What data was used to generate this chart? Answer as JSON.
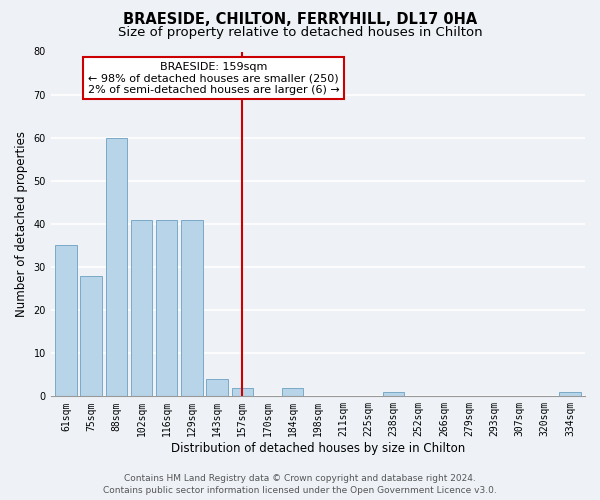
{
  "title": "BRAESIDE, CHILTON, FERRYHILL, DL17 0HA",
  "subtitle": "Size of property relative to detached houses in Chilton",
  "xlabel": "Distribution of detached houses by size in Chilton",
  "ylabel": "Number of detached properties",
  "bar_labels": [
    "61sqm",
    "75sqm",
    "88sqm",
    "102sqm",
    "116sqm",
    "129sqm",
    "143sqm",
    "157sqm",
    "170sqm",
    "184sqm",
    "198sqm",
    "211sqm",
    "225sqm",
    "238sqm",
    "252sqm",
    "266sqm",
    "279sqm",
    "293sqm",
    "307sqm",
    "320sqm",
    "334sqm"
  ],
  "bar_values": [
    35,
    28,
    60,
    41,
    41,
    41,
    4,
    2,
    0,
    2,
    0,
    0,
    0,
    1,
    0,
    0,
    0,
    0,
    0,
    0,
    1
  ],
  "bar_color": "#b8d4e8",
  "bar_edge_color": "#7aaac8",
  "vline_x": 7,
  "vline_color": "#cc0000",
  "ylim": [
    0,
    80
  ],
  "yticks": [
    0,
    10,
    20,
    30,
    40,
    50,
    60,
    70,
    80
  ],
  "annotation_title": "BRAESIDE: 159sqm",
  "annotation_line1": "← 98% of detached houses are smaller (250)",
  "annotation_line2": "2% of semi-detached houses are larger (6) →",
  "footer_line1": "Contains HM Land Registry data © Crown copyright and database right 2024.",
  "footer_line2": "Contains public sector information licensed under the Open Government Licence v3.0.",
  "background_color": "#eef2f7",
  "plot_background_color": "#eef2f7",
  "grid_color": "#ffffff",
  "title_fontsize": 10.5,
  "subtitle_fontsize": 9.5,
  "axis_label_fontsize": 8.5,
  "tick_fontsize": 7,
  "footer_fontsize": 6.5,
  "annot_fontsize": 8
}
